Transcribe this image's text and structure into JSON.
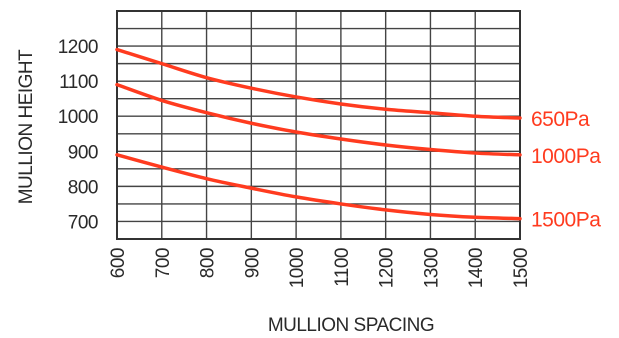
{
  "chart_data": {
    "type": "line",
    "xlabel": "MULLION SPACING",
    "ylabel": "MULLION HEIGHT",
    "x": [
      600,
      700,
      800,
      900,
      1000,
      1100,
      1200,
      1300,
      1400,
      1500
    ],
    "x_ticks": [
      "600",
      "700",
      "800",
      "900",
      "1000",
      "1100",
      "1200",
      "1300",
      "1400",
      "1500"
    ],
    "y_ticks": [
      "700",
      "800",
      "900",
      "1000",
      "1100",
      "1200"
    ],
    "xlim": [
      600,
      1500
    ],
    "ylim": [
      650,
      1300
    ],
    "grid": true,
    "legend": "inline-right",
    "series": [
      {
        "name": "650Pa",
        "values": [
          1190,
          1150,
          1110,
          1080,
          1055,
          1035,
          1020,
          1010,
          1000,
          995
        ]
      },
      {
        "name": "1000Pa",
        "values": [
          1090,
          1045,
          1010,
          980,
          955,
          935,
          918,
          905,
          895,
          890
        ]
      },
      {
        "name": "1500Pa",
        "values": [
          890,
          855,
          822,
          795,
          770,
          750,
          733,
          720,
          712,
          708
        ]
      }
    ],
    "colors": {
      "series": "#ff3b1f",
      "grid": "#444444",
      "text": "#2a2a2a"
    }
  }
}
